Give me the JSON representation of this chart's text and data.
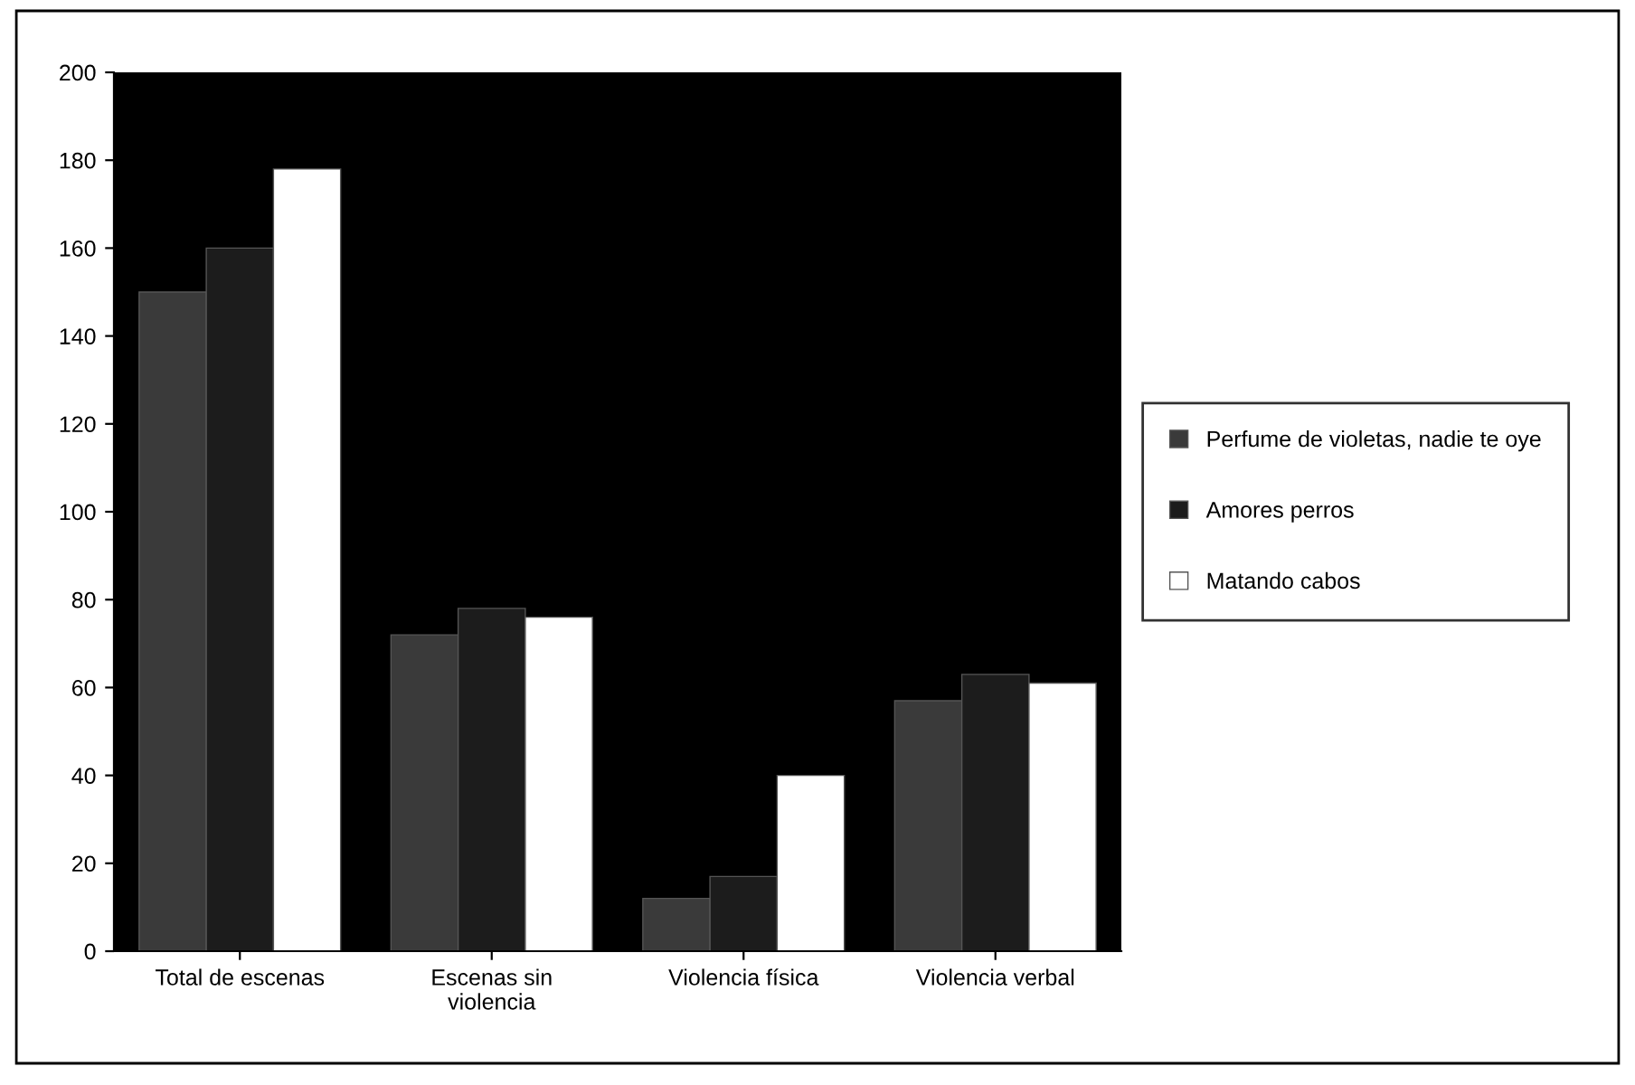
{
  "chart_data": {
    "type": "bar",
    "categories": [
      "Total de escenas",
      "Escenas sin\nviolencia",
      "Violencia física",
      "Violencia verbal"
    ],
    "series": [
      {
        "name": "Perfume de violetas, nadie te oye",
        "color": "#3a3a3a",
        "values": [
          150,
          72,
          12,
          57
        ]
      },
      {
        "name": "Amores perros",
        "color": "#1c1c1c",
        "values": [
          160,
          78,
          17,
          63
        ]
      },
      {
        "name": "Matando cabos",
        "color": "#ffffff",
        "values": [
          178,
          76,
          40,
          61
        ]
      }
    ],
    "ylim": [
      0,
      200
    ],
    "yticks": [
      0,
      20,
      40,
      60,
      80,
      100,
      120,
      140,
      160,
      180,
      200
    ],
    "grid": false,
    "legend": "right"
  }
}
